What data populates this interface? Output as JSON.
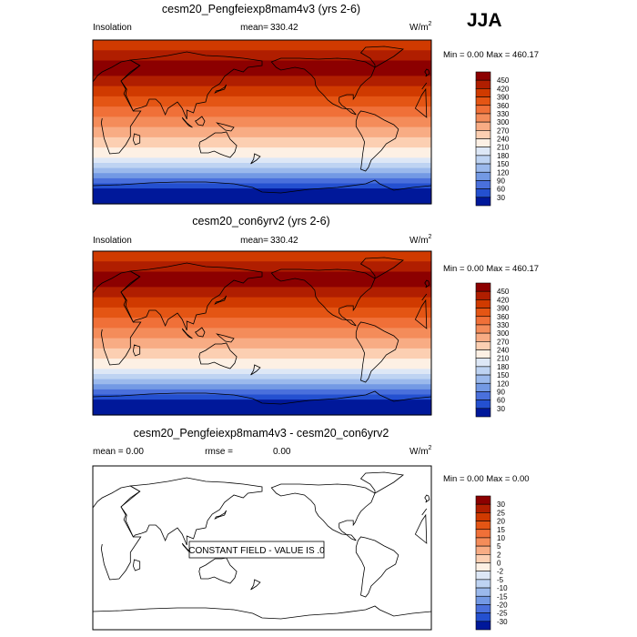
{
  "season": "JJA",
  "panels": [
    {
      "title": "cesm20_Pengfeiexp8mam4v3 (yrs 2-6)",
      "left_label": "Insolation",
      "stat_label": "mean=",
      "stat_value": "330.42",
      "units": "W/m",
      "units_sup": "2",
      "minmax_text": "Min =   0.00 Max = 460.17"
    },
    {
      "title": "cesm20_con6yrv2 (yrs 2-6)",
      "left_label": "Insolation",
      "stat_label": "mean=",
      "stat_value": "330.42",
      "units": "W/m",
      "units_sup": "2",
      "minmax_text": "Min =   0.00 Max = 460.17"
    },
    {
      "title": "cesm20_Pengfeiexp8mam4v3 - cesm20_con6yrv2",
      "left_label": "mean =   0.00",
      "stat_label": "rmse =",
      "stat_value": "0.00",
      "units": "W/m",
      "units_sup": "2",
      "minmax_text": "Min =   0.00 Max =   0.00",
      "annotation": "CONSTANT FIELD - VALUE IS .0"
    }
  ],
  "chart_data": [
    {
      "type": "heatmap",
      "title": "cesm20_Pengfeiexp8mam4v3 (yrs 2-6)",
      "field": "Insolation",
      "mean": 330.42,
      "min": 0.0,
      "max": 460.17,
      "units": "W/m2",
      "legend": {
        "placement": "right",
        "levels": [
          "450",
          "420",
          "390",
          "360",
          "330",
          "300",
          "270",
          "240",
          "210",
          "180",
          "150",
          "120",
          "90",
          "60",
          "30"
        ],
        "colors": [
          "#8c0000",
          "#b01e00",
          "#d03a00",
          "#e45514",
          "#f07038",
          "#f48c5a",
          "#f8ac84",
          "#fccfb2",
          "#fdf0e4",
          "#dde7f6",
          "#bed3f2",
          "#9bb9ec",
          "#7399e4",
          "#4a70dc",
          "#2450d0",
          "#00189a"
        ]
      },
      "band_values_north_to_south": [
        405,
        405,
        420,
        435,
        450,
        450,
        450,
        435,
        420,
        405,
        390,
        375,
        360,
        345,
        330,
        315,
        300,
        285,
        270,
        255,
        240,
        225,
        210,
        195,
        165,
        135,
        105,
        75,
        45,
        15,
        0,
        0
      ]
    },
    {
      "type": "heatmap",
      "title": "cesm20_con6yrv2 (yrs 2-6)",
      "field": "Insolation",
      "mean": 330.42,
      "min": 0.0,
      "max": 460.17,
      "units": "W/m2",
      "legend": {
        "placement": "right",
        "levels": [
          "450",
          "420",
          "390",
          "360",
          "330",
          "300",
          "270",
          "240",
          "210",
          "180",
          "150",
          "120",
          "90",
          "60",
          "30"
        ],
        "colors": [
          "#8c0000",
          "#b01e00",
          "#d03a00",
          "#e45514",
          "#f07038",
          "#f48c5a",
          "#f8ac84",
          "#fccfb2",
          "#fdf0e4",
          "#dde7f6",
          "#bed3f2",
          "#9bb9ec",
          "#7399e4",
          "#4a70dc",
          "#2450d0",
          "#00189a"
        ]
      },
      "band_values_north_to_south": [
        405,
        405,
        420,
        435,
        450,
        450,
        450,
        435,
        420,
        405,
        390,
        375,
        360,
        345,
        330,
        315,
        300,
        285,
        270,
        255,
        240,
        225,
        210,
        195,
        165,
        135,
        105,
        75,
        45,
        15,
        0,
        0
      ]
    },
    {
      "type": "heatmap",
      "title": "cesm20_Pengfeiexp8mam4v3 - cesm20_con6yrv2",
      "mean": 0.0,
      "rmse": 0.0,
      "min": 0.0,
      "max": 0.0,
      "units": "W/m2",
      "constant_value": 0,
      "legend": {
        "placement": "right",
        "levels": [
          "30",
          "25",
          "20",
          "15",
          "10",
          "5",
          "2",
          "0",
          "-2",
          "-5",
          "-10",
          "-15",
          "-20",
          "-25",
          "-30"
        ],
        "colors": [
          "#8c0000",
          "#b01e00",
          "#d03a00",
          "#e45514",
          "#f07038",
          "#f48c5a",
          "#f8ac84",
          "#fccfb2",
          "#fdf0e4",
          "#dde7f6",
          "#bed3f2",
          "#9bb9ec",
          "#7399e4",
          "#4a70dc",
          "#2450d0",
          "#00189a"
        ]
      }
    }
  ]
}
